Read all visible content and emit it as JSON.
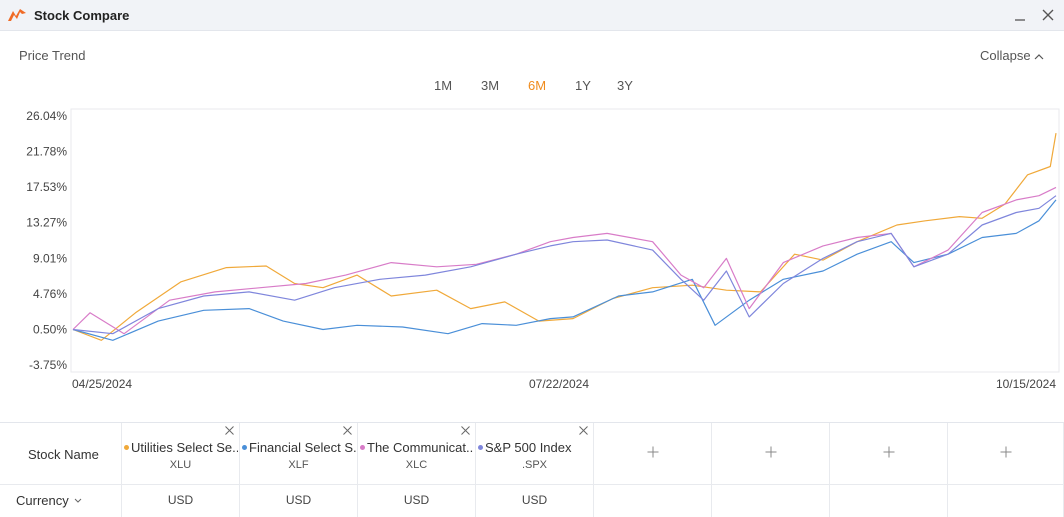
{
  "window": {
    "title": "Stock Compare",
    "icon": "app-logo-icon"
  },
  "header": {
    "section_title": "Price Trend",
    "collapse_label": "Collapse"
  },
  "ranges": {
    "tabs": [
      {
        "label": "1M"
      },
      {
        "label": "3M"
      },
      {
        "label": "6M"
      },
      {
        "label": "1Y"
      },
      {
        "label": "3Y"
      }
    ],
    "active": "6M",
    "active_color": "#f08c1e"
  },
  "chart_data": {
    "type": "line",
    "y_tick_labels": [
      "26.04%",
      "21.78%",
      "17.53%",
      "13.27%",
      "9.01%",
      "4.76%",
      "0.50%",
      "-3.75%"
    ],
    "y_ticks": [
      26.04,
      21.78,
      17.53,
      13.27,
      9.01,
      4.76,
      0.5,
      -3.75
    ],
    "ylim": [
      -3.75,
      26.04
    ],
    "x_tick_labels": [
      "04/25/2024",
      "07/22/2024",
      "10/15/2024"
    ],
    "xlim": [
      "2024-04-25",
      "2024-10-15"
    ],
    "grid": false,
    "series": [
      {
        "name": "Utilities Select Sector SPDR",
        "color": "#f0a93a",
        "points": [
          [
            "2024-04-25",
            0.5
          ],
          [
            "2024-04-30",
            -0.8
          ],
          [
            "2024-05-06",
            2.5
          ],
          [
            "2024-05-14",
            6.2
          ],
          [
            "2024-05-22",
            7.9
          ],
          [
            "2024-05-29",
            8.1
          ],
          [
            "2024-06-03",
            6.0
          ],
          [
            "2024-06-08",
            5.5
          ],
          [
            "2024-06-14",
            7.0
          ],
          [
            "2024-06-20",
            4.5
          ],
          [
            "2024-06-28",
            5.2
          ],
          [
            "2024-07-04",
            3.0
          ],
          [
            "2024-07-10",
            3.8
          ],
          [
            "2024-07-16",
            1.5
          ],
          [
            "2024-07-22",
            1.8
          ],
          [
            "2024-07-29",
            4.2
          ],
          [
            "2024-08-05",
            5.5
          ],
          [
            "2024-08-12",
            5.8
          ],
          [
            "2024-08-18",
            5.2
          ],
          [
            "2024-08-24",
            5.0
          ],
          [
            "2024-08-30",
            9.5
          ],
          [
            "2024-09-04",
            8.8
          ],
          [
            "2024-09-10",
            11.0
          ],
          [
            "2024-09-17",
            13.0
          ],
          [
            "2024-09-22",
            13.5
          ],
          [
            "2024-09-28",
            14.0
          ],
          [
            "2024-10-02",
            13.8
          ],
          [
            "2024-10-06",
            15.5
          ],
          [
            "2024-10-10",
            19.0
          ],
          [
            "2024-10-14",
            20.0
          ],
          [
            "2024-10-15",
            24.0
          ]
        ]
      },
      {
        "name": "Financial Select Sector SPDR",
        "color": "#4a8fd8",
        "points": [
          [
            "2024-04-25",
            0.5
          ],
          [
            "2024-05-02",
            -0.8
          ],
          [
            "2024-05-10",
            1.5
          ],
          [
            "2024-05-18",
            2.8
          ],
          [
            "2024-05-26",
            3.0
          ],
          [
            "2024-06-01",
            1.5
          ],
          [
            "2024-06-08",
            0.5
          ],
          [
            "2024-06-14",
            1.0
          ],
          [
            "2024-06-22",
            0.8
          ],
          [
            "2024-06-30",
            0.0
          ],
          [
            "2024-07-06",
            1.2
          ],
          [
            "2024-07-12",
            1.0
          ],
          [
            "2024-07-18",
            1.8
          ],
          [
            "2024-07-22",
            2.0
          ],
          [
            "2024-07-30",
            4.5
          ],
          [
            "2024-08-05",
            5.0
          ],
          [
            "2024-08-12",
            6.5
          ],
          [
            "2024-08-16",
            1.0
          ],
          [
            "2024-08-22",
            4.0
          ],
          [
            "2024-08-28",
            6.5
          ],
          [
            "2024-09-04",
            7.5
          ],
          [
            "2024-09-10",
            9.5
          ],
          [
            "2024-09-16",
            11.0
          ],
          [
            "2024-09-20",
            8.5
          ],
          [
            "2024-09-26",
            9.5
          ],
          [
            "2024-10-02",
            11.5
          ],
          [
            "2024-10-08",
            12.0
          ],
          [
            "2024-10-12",
            13.5
          ],
          [
            "2024-10-15",
            16.0
          ]
        ]
      },
      {
        "name": "The Communication Services Select Sector SPDR",
        "color": "#d87cc8",
        "points": [
          [
            "2024-04-25",
            0.5
          ],
          [
            "2024-04-28",
            2.5
          ],
          [
            "2024-05-04",
            0.0
          ],
          [
            "2024-05-12",
            4.0
          ],
          [
            "2024-05-20",
            5.0
          ],
          [
            "2024-05-28",
            5.5
          ],
          [
            "2024-06-05",
            6.0
          ],
          [
            "2024-06-12",
            7.0
          ],
          [
            "2024-06-20",
            8.5
          ],
          [
            "2024-06-28",
            8.0
          ],
          [
            "2024-07-05",
            8.3
          ],
          [
            "2024-07-12",
            9.5
          ],
          [
            "2024-07-18",
            11.0
          ],
          [
            "2024-07-22",
            11.5
          ],
          [
            "2024-07-28",
            12.0
          ],
          [
            "2024-08-05",
            11.0
          ],
          [
            "2024-08-10",
            7.0
          ],
          [
            "2024-08-14",
            5.5
          ],
          [
            "2024-08-18",
            9.0
          ],
          [
            "2024-08-22",
            3.0
          ],
          [
            "2024-08-28",
            8.5
          ],
          [
            "2024-09-04",
            10.5
          ],
          [
            "2024-09-10",
            11.5
          ],
          [
            "2024-09-16",
            12.0
          ],
          [
            "2024-09-20",
            8.0
          ],
          [
            "2024-09-26",
            10.0
          ],
          [
            "2024-10-02",
            14.5
          ],
          [
            "2024-10-08",
            16.0
          ],
          [
            "2024-10-12",
            16.5
          ],
          [
            "2024-10-15",
            17.5
          ]
        ]
      },
      {
        "name": "S&P 500 Index",
        "color": "#7f86dc",
        "points": [
          [
            "2024-04-25",
            0.5
          ],
          [
            "2024-05-02",
            0.0
          ],
          [
            "2024-05-10",
            3.0
          ],
          [
            "2024-05-18",
            4.5
          ],
          [
            "2024-05-26",
            5.0
          ],
          [
            "2024-06-03",
            4.0
          ],
          [
            "2024-06-10",
            5.5
          ],
          [
            "2024-06-18",
            6.5
          ],
          [
            "2024-06-26",
            7.0
          ],
          [
            "2024-07-04",
            8.0
          ],
          [
            "2024-07-12",
            9.5
          ],
          [
            "2024-07-18",
            10.5
          ],
          [
            "2024-07-22",
            11.0
          ],
          [
            "2024-07-28",
            11.2
          ],
          [
            "2024-08-05",
            10.0
          ],
          [
            "2024-08-10",
            6.5
          ],
          [
            "2024-08-14",
            4.0
          ],
          [
            "2024-08-18",
            7.5
          ],
          [
            "2024-08-22",
            2.0
          ],
          [
            "2024-08-28",
            6.0
          ],
          [
            "2024-09-04",
            9.0
          ],
          [
            "2024-09-10",
            11.0
          ],
          [
            "2024-09-16",
            12.0
          ],
          [
            "2024-09-20",
            8.0
          ],
          [
            "2024-09-26",
            9.5
          ],
          [
            "2024-10-02",
            13.0
          ],
          [
            "2024-10-08",
            14.5
          ],
          [
            "2024-10-12",
            15.0
          ],
          [
            "2024-10-15",
            16.5
          ]
        ]
      }
    ]
  },
  "table": {
    "row_headers": {
      "stock_name": "Stock Name",
      "currency": "Currency"
    },
    "stocks": [
      {
        "name": "Utilities Select Se...",
        "ticker": "XLU",
        "currency": "USD",
        "color": "#f0a93a"
      },
      {
        "name": "Financial Select S...",
        "ticker": "XLF",
        "currency": "USD",
        "color": "#4a8fd8"
      },
      {
        "name": "The Communicat...",
        "ticker": "XLC",
        "currency": "USD",
        "color": "#d87cc8"
      },
      {
        "name": "S&P 500 Index",
        "ticker": ".SPX",
        "currency": "USD",
        "color": "#7f86dc"
      }
    ],
    "empty_slots": 4
  }
}
